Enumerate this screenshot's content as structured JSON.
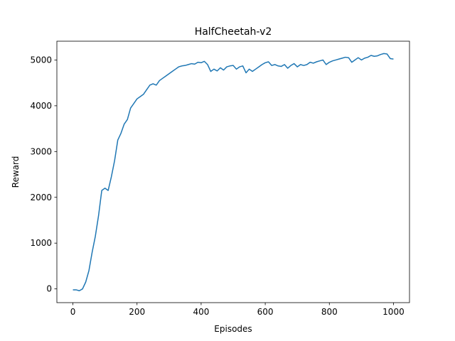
{
  "chart_data": {
    "type": "line",
    "title": "HalfCheetah-v2",
    "x_label": "Episodes",
    "y_label": "Reward",
    "x": [
      0,
      10,
      20,
      30,
      40,
      50,
      60,
      70,
      80,
      90,
      100,
      110,
      120,
      130,
      140,
      150,
      160,
      170,
      180,
      190,
      200,
      210,
      220,
      230,
      240,
      250,
      260,
      270,
      280,
      290,
      300,
      310,
      320,
      330,
      340,
      350,
      360,
      370,
      380,
      390,
      400,
      410,
      420,
      430,
      440,
      450,
      460,
      470,
      480,
      490,
      500,
      510,
      520,
      530,
      540,
      550,
      560,
      570,
      580,
      590,
      600,
      610,
      620,
      630,
      640,
      650,
      660,
      670,
      680,
      690,
      700,
      710,
      720,
      730,
      740,
      750,
      760,
      770,
      780,
      790,
      800,
      810,
      820,
      830,
      840,
      850,
      860,
      870,
      880,
      890,
      900,
      910,
      920,
      930,
      940,
      950,
      960,
      970,
      980,
      990,
      1000
    ],
    "series": [
      {
        "name": "Reward",
        "color": "#1f77b4",
        "values": [
          -20,
          -20,
          -40,
          0,
          150,
          400,
          800,
          1150,
          1600,
          2150,
          2200,
          2150,
          2450,
          2800,
          3250,
          3400,
          3600,
          3700,
          3950,
          4050,
          4150,
          4200,
          4250,
          4350,
          4450,
          4480,
          4450,
          4550,
          4600,
          4650,
          4700,
          4750,
          4800,
          4850,
          4870,
          4880,
          4900,
          4920,
          4910,
          4950,
          4940,
          4970,
          4900,
          4750,
          4800,
          4760,
          4830,
          4780,
          4850,
          4870,
          4880,
          4800,
          4850,
          4870,
          4720,
          4800,
          4750,
          4800,
          4850,
          4900,
          4940,
          4960,
          4880,
          4900,
          4870,
          4860,
          4900,
          4820,
          4880,
          4920,
          4850,
          4900,
          4880,
          4900,
          4950,
          4930,
          4960,
          4980,
          5000,
          4900,
          4950,
          4980,
          5000,
          5020,
          5040,
          5060,
          5050,
          4950,
          5000,
          5050,
          5000,
          5040,
          5060,
          5100,
          5080,
          5090,
          5120,
          5140,
          5130,
          5030,
          5020
        ]
      }
    ],
    "xlim": [
      -50,
      1050
    ],
    "ylim": [
      -300,
      5410
    ],
    "xticks": [
      0,
      200,
      400,
      600,
      800,
      1000
    ],
    "yticks": [
      0,
      1000,
      2000,
      3000,
      4000,
      5000
    ],
    "grid": false
  }
}
